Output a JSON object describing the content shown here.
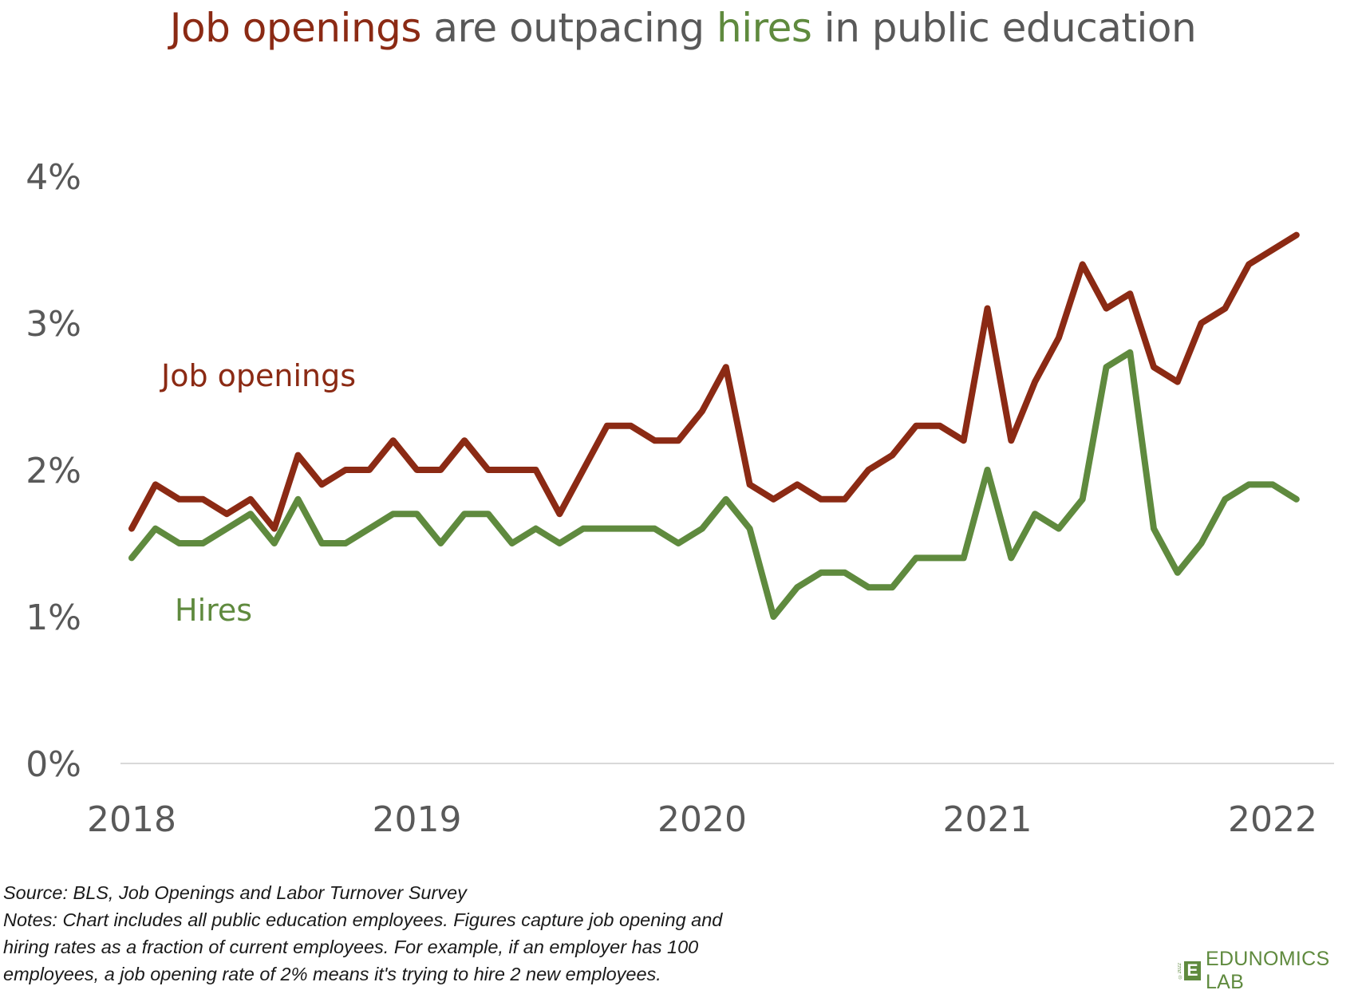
{
  "title": {
    "part1": "Job openings",
    "part2": " are outpacing ",
    "part3": "hires",
    "part4": " in public education"
  },
  "colors": {
    "job_openings": "#8b2a14",
    "hires": "#5f8a3e",
    "axis_text": "#595959",
    "axis_line": "#d9d9d9"
  },
  "footnotes": {
    "source": "Source: BLS, Job Openings and Labor Turnover Survey",
    "notes_line1": "Notes: Chart includes all public education employees. Figures capture job opening and",
    "notes_line2": "hiring rates as a fraction of current employees. For example, if an employer has 100",
    "notes_line3": "employees, a job opening rate of 2% means it's trying to hire 2 new employees."
  },
  "logo": {
    "mark": "E",
    "name": "EDUNOMICS LAB",
    "copyright": "©2022"
  },
  "chart_data": {
    "type": "line",
    "title": "Job openings are outpacing hires in public education",
    "xlabel": "",
    "ylabel": "",
    "x_start": "2018-01",
    "x_step": "month",
    "xlim": [
      2018.0,
      2022.08
    ],
    "ylim": [
      0,
      4
    ],
    "y_ticks": [
      "0%",
      "1%",
      "2%",
      "3%",
      "4%"
    ],
    "y_tick_values": [
      0,
      1,
      2,
      3,
      4
    ],
    "x_ticks": [
      "2018",
      "2019",
      "2020",
      "2021",
      "2022"
    ],
    "x_tick_values": [
      2018,
      2019,
      2020,
      2021,
      2022
    ],
    "grid": false,
    "legend": "inline labels",
    "series": [
      {
        "name": "Job openings",
        "color": "#8b2a14",
        "values": [
          1.6,
          1.9,
          1.8,
          1.8,
          1.7,
          1.8,
          1.6,
          2.1,
          1.9,
          2.0,
          2.0,
          2.2,
          2.0,
          2.0,
          2.2,
          2.0,
          2.0,
          2.0,
          1.7,
          2.0,
          2.3,
          2.3,
          2.2,
          2.2,
          2.4,
          2.7,
          1.9,
          1.8,
          1.9,
          1.8,
          1.8,
          2.0,
          2.1,
          2.3,
          2.3,
          2.2,
          3.1,
          2.2,
          2.6,
          2.9,
          3.4,
          3.1,
          3.2,
          2.7,
          2.6,
          3.0,
          3.1,
          3.4,
          3.5,
          3.6
        ]
      },
      {
        "name": "Hires",
        "color": "#5f8a3e",
        "values": [
          1.4,
          1.6,
          1.5,
          1.5,
          1.6,
          1.7,
          1.5,
          1.8,
          1.5,
          1.5,
          1.6,
          1.7,
          1.7,
          1.5,
          1.7,
          1.7,
          1.5,
          1.6,
          1.5,
          1.6,
          1.6,
          1.6,
          1.6,
          1.5,
          1.6,
          1.8,
          1.6,
          1.0,
          1.2,
          1.3,
          1.3,
          1.2,
          1.2,
          1.4,
          1.4,
          1.4,
          2.0,
          1.4,
          1.7,
          1.6,
          1.8,
          2.7,
          2.8,
          1.6,
          1.3,
          1.5,
          1.8,
          1.9,
          1.9,
          1.8
        ]
      }
    ]
  }
}
